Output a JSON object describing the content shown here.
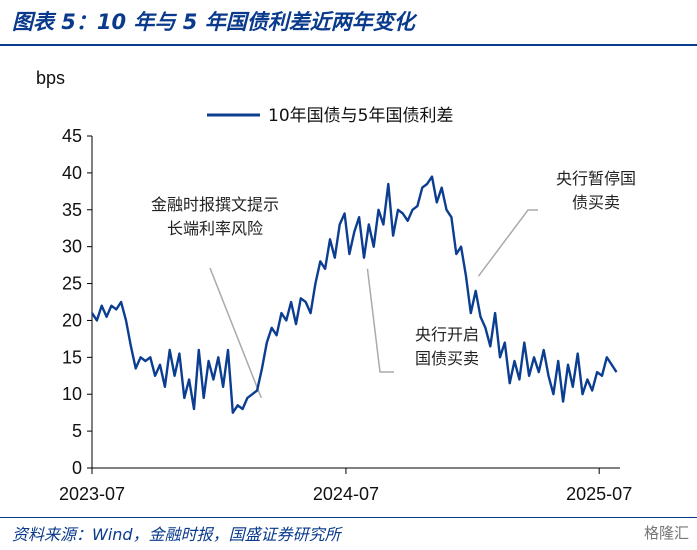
{
  "title": "图表 5：10 年与 5 年国债利差近两年变化",
  "source": "资料来源：Wind，金融时报，国盛证券研究所",
  "watermark": "格隆汇",
  "colors": {
    "accent": "#0a3a8c",
    "series": "#0b3d91",
    "arrow": "#aaaaaa"
  },
  "chart_data": {
    "type": "line",
    "ylabel": "bps",
    "ylim": [
      0,
      45
    ],
    "yticks": [
      0,
      5,
      10,
      15,
      20,
      25,
      30,
      35,
      40,
      45
    ],
    "xticks": [
      "2023-07",
      "2024-07",
      "2025-07"
    ],
    "xlim": [
      "2023-07-01",
      "2025-07-31"
    ],
    "legend": "top",
    "grid": false,
    "series": [
      {
        "name": "10年国债与5年国债利差",
        "points": [
          [
            "2023-07-01",
            21
          ],
          [
            "2023-07-08",
            20
          ],
          [
            "2023-07-15",
            22
          ],
          [
            "2023-07-22",
            20.5
          ],
          [
            "2023-07-29",
            22
          ],
          [
            "2023-08-05",
            21.5
          ],
          [
            "2023-08-12",
            22.5
          ],
          [
            "2023-08-19",
            20
          ],
          [
            "2023-08-26",
            16.5
          ],
          [
            "2023-09-02",
            13.5
          ],
          [
            "2023-09-09",
            15
          ],
          [
            "2023-09-16",
            14.5
          ],
          [
            "2023-09-23",
            15
          ],
          [
            "2023-09-30",
            12.5
          ],
          [
            "2023-10-07",
            14
          ],
          [
            "2023-10-14",
            11
          ],
          [
            "2023-10-21",
            16
          ],
          [
            "2023-10-28",
            12.5
          ],
          [
            "2023-11-04",
            15.5
          ],
          [
            "2023-11-11",
            9.5
          ],
          [
            "2023-11-18",
            12
          ],
          [
            "2023-11-25",
            8
          ],
          [
            "2023-12-02",
            16
          ],
          [
            "2023-12-09",
            9.5
          ],
          [
            "2023-12-16",
            14.5
          ],
          [
            "2023-12-23",
            12
          ],
          [
            "2023-12-30",
            15
          ],
          [
            "2024-01-06",
            11
          ],
          [
            "2024-01-13",
            16
          ],
          [
            "2024-01-20",
            7.5
          ],
          [
            "2024-01-27",
            8.5
          ],
          [
            "2024-02-03",
            8
          ],
          [
            "2024-02-10",
            9.5
          ],
          [
            "2024-02-17",
            10
          ],
          [
            "2024-02-24",
            10.5
          ],
          [
            "2024-03-02",
            13.5
          ],
          [
            "2024-03-09",
            17
          ],
          [
            "2024-03-16",
            19
          ],
          [
            "2024-03-23",
            18
          ],
          [
            "2024-03-30",
            21
          ],
          [
            "2024-04-06",
            20
          ],
          [
            "2024-04-13",
            22.5
          ],
          [
            "2024-04-20",
            19.5
          ],
          [
            "2024-04-27",
            23
          ],
          [
            "2024-05-04",
            22.5
          ],
          [
            "2024-05-11",
            21
          ],
          [
            "2024-05-18",
            25
          ],
          [
            "2024-05-25",
            28
          ],
          [
            "2024-06-01",
            27
          ],
          [
            "2024-06-08",
            31
          ],
          [
            "2024-06-15",
            28.5
          ],
          [
            "2024-06-22",
            33
          ],
          [
            "2024-06-29",
            34.5
          ],
          [
            "2024-07-06",
            29
          ],
          [
            "2024-07-13",
            32
          ],
          [
            "2024-07-20",
            34
          ],
          [
            "2024-07-27",
            28.5
          ],
          [
            "2024-08-03",
            33
          ],
          [
            "2024-08-10",
            30
          ],
          [
            "2024-08-17",
            35
          ],
          [
            "2024-08-24",
            33
          ],
          [
            "2024-08-31",
            38.5
          ],
          [
            "2024-09-07",
            31.5
          ],
          [
            "2024-09-14",
            35
          ],
          [
            "2024-09-21",
            34.5
          ],
          [
            "2024-09-28",
            33.5
          ],
          [
            "2024-10-05",
            35
          ],
          [
            "2024-10-12",
            35.5
          ],
          [
            "2024-10-19",
            38
          ],
          [
            "2024-10-26",
            38.5
          ],
          [
            "2024-11-02",
            39.5
          ],
          [
            "2024-11-09",
            36
          ],
          [
            "2024-11-16",
            38
          ],
          [
            "2024-11-23",
            35
          ],
          [
            "2024-11-30",
            34
          ],
          [
            "2024-12-07",
            29
          ],
          [
            "2024-12-14",
            30
          ],
          [
            "2024-12-21",
            26
          ],
          [
            "2024-12-28",
            21
          ],
          [
            "2025-01-04",
            24
          ],
          [
            "2025-01-11",
            20.5
          ],
          [
            "2025-01-18",
            19
          ],
          [
            "2025-01-25",
            16.5
          ],
          [
            "2025-02-01",
            21
          ],
          [
            "2025-02-08",
            15
          ],
          [
            "2025-02-15",
            17
          ],
          [
            "2025-02-22",
            11.5
          ],
          [
            "2025-03-01",
            14.5
          ],
          [
            "2025-03-08",
            12
          ],
          [
            "2025-03-15",
            17
          ],
          [
            "2025-03-22",
            12.5
          ],
          [
            "2025-03-29",
            15
          ],
          [
            "2025-04-05",
            13
          ],
          [
            "2025-04-12",
            16
          ],
          [
            "2025-04-19",
            12.5
          ],
          [
            "2025-04-26",
            10
          ],
          [
            "2025-05-03",
            14.5
          ],
          [
            "2025-05-10",
            9
          ],
          [
            "2025-05-17",
            14
          ],
          [
            "2025-05-24",
            11
          ],
          [
            "2025-05-31",
            15.5
          ],
          [
            "2025-06-07",
            10
          ],
          [
            "2025-06-14",
            12
          ],
          [
            "2025-06-21",
            10.5
          ],
          [
            "2025-06-28",
            13
          ],
          [
            "2025-07-05",
            12.5
          ],
          [
            "2025-07-12",
            15
          ],
          [
            "2025-07-19",
            14
          ],
          [
            "2025-07-26",
            13
          ]
        ]
      }
    ],
    "annotations": [
      {
        "text": [
          "金融时报撰文提示",
          "长端利率风险"
        ],
        "date": "2024-03-01",
        "value": 9.5
      },
      {
        "text": [
          "央行开启",
          "国债买卖"
        ],
        "date": "2024-08-01",
        "value": 27
      },
      {
        "text": [
          "央行暂停国",
          "债买卖"
        ],
        "date": "2025-01-08",
        "value": 26
      }
    ]
  }
}
